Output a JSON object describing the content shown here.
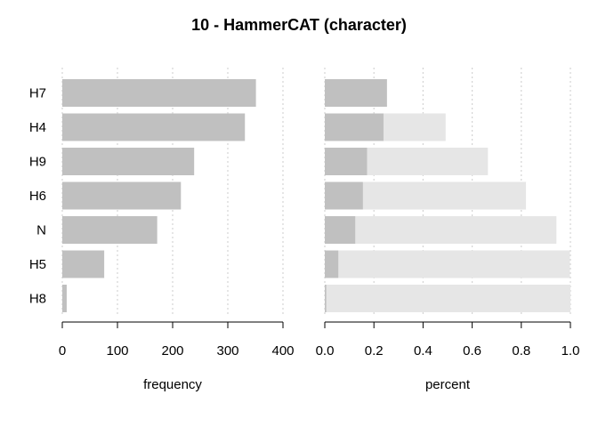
{
  "chart_data": [
    {
      "type": "bar",
      "orientation": "horizontal",
      "title": "10 - HammerCAT (character)",
      "xlabel": "frequency",
      "ylabel": "",
      "xlim": [
        0,
        400
      ],
      "xticks": [
        "0",
        "100",
        "200",
        "300",
        "400"
      ],
      "categories": [
        "H7",
        "H4",
        "H9",
        "H6",
        "N",
        "H5",
        "H8"
      ],
      "values": [
        351,
        331,
        239,
        215,
        172,
        76,
        8
      ],
      "grid": "vertical dotted",
      "colors": {
        "bar": "#c0c0c0"
      }
    },
    {
      "type": "bar",
      "orientation": "horizontal",
      "xlabel": "percent",
      "ylabel": "",
      "xlim": [
        0,
        1
      ],
      "xticks": [
        "0.0",
        "0.2",
        "0.4",
        "0.6",
        "0.8",
        "1.0"
      ],
      "categories": [
        "H7",
        "H4",
        "H9",
        "H6",
        "N",
        "H5",
        "H8"
      ],
      "series": [
        {
          "values": [
            0.253,
            0.239,
            0.172,
            0.155,
            0.124,
            0.055,
            0.006
          ]
        },
        {
          "values": [
            0.253,
            0.492,
            0.664,
            0.819,
            0.943,
            0.998,
            1.0
          ]
        }
      ],
      "grid": "vertical dotted",
      "colors": {
        "individual": "#c0c0c0",
        "cumulative": "#e6e6e6"
      }
    }
  ]
}
